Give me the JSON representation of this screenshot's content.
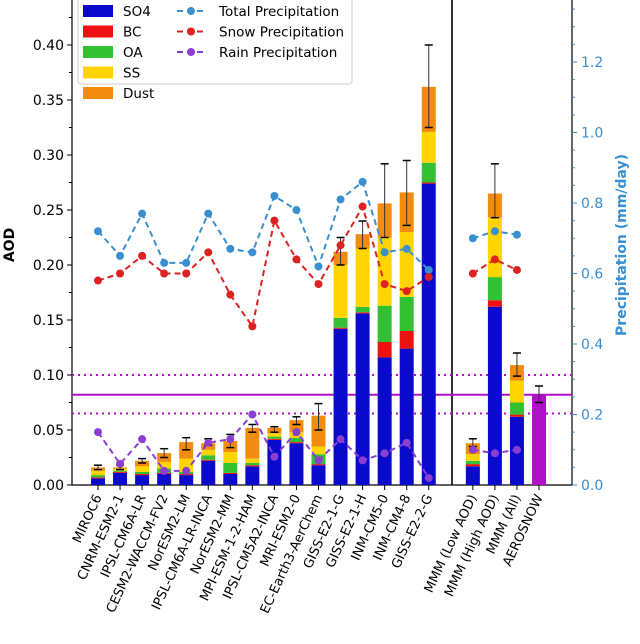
{
  "chart_data": {
    "type": "bar",
    "stacked": true,
    "ylabel": "AOD",
    "y2label": "Precipitation (mm/day)",
    "ylim": [
      0,
      0.44
    ],
    "y2lim": [
      0,
      1.375
    ],
    "yticks": [
      "0.00",
      "0.05",
      "0.10",
      "0.15",
      "0.20",
      "0.25",
      "0.30",
      "0.35",
      "0.40"
    ],
    "y2ticks": [
      "0.0",
      "0.2",
      "0.4",
      "0.6",
      "0.8",
      "1.0",
      "1.2"
    ],
    "categories": [
      "MIROC6",
      "CNRM-ESM2-1",
      "IPSL-CM6A-LR",
      "CESM2-WACCM-FV2",
      "NorESM2-LM",
      "IPSL-CM6A-LR-INCA",
      "NorESM2-MM",
      "MPI-ESM-1-2-HAM",
      "IPSL-CM5A2-INCA",
      "MRI-ESM2-0",
      "EC-Earth3-AerChem",
      "GISS-E2-1-G",
      "GISS-E2-1-H",
      "INM-CM5-0",
      "INM-CM4-8",
      "GISS-E2-2-G",
      "",
      "MMM (Low AOD)",
      "MMM (High AOD)",
      "MMM (All)",
      "AEROSNOW"
    ],
    "colors": {
      "SO4": "#0a0acc",
      "BC": "#ee1111",
      "OA": "#33c133",
      "SS": "#ffd400",
      "Dust": "#f28c0f",
      "Total Precipitation": "#3a8fd0",
      "Snow Precipitation": "#dd2222",
      "Rain Precipitation": "#8a3fd0",
      "AEROSNOW": "#b010c8"
    },
    "series": [
      {
        "name": "SO4",
        "values": [
          0.006,
          0.011,
          0.009,
          0.01,
          0.009,
          0.022,
          0.01,
          0.017,
          0.041,
          0.038,
          0.018,
          0.142,
          0.156,
          0.116,
          0.124,
          0.274,
          null,
          0.017,
          0.162,
          0.062,
          null
        ]
      },
      {
        "name": "BC",
        "values": [
          0.001,
          0.001,
          0.001,
          0.001,
          0.001,
          0.001,
          0.001,
          0.001,
          0.001,
          0.001,
          0.001,
          0.001,
          0.001,
          0.014,
          0.016,
          0.001,
          null,
          0.002,
          0.006,
          0.002,
          null
        ]
      },
      {
        "name": "OA",
        "values": [
          0.002,
          0.001,
          0.002,
          0.004,
          0.002,
          0.004,
          0.009,
          0.002,
          0.002,
          0.004,
          0.009,
          0.009,
          0.005,
          0.033,
          0.031,
          0.018,
          null,
          0.003,
          0.021,
          0.011,
          null
        ]
      },
      {
        "name": "SS",
        "values": [
          0.004,
          0.002,
          0.005,
          0.006,
          0.012,
          0.005,
          0.01,
          0.004,
          0.003,
          0.005,
          0.007,
          0.048,
          0.053,
          0.062,
          0.059,
          0.028,
          null,
          0.006,
          0.054,
          0.02,
          null
        ]
      },
      {
        "name": "Dust",
        "values": [
          0.003,
          0.001,
          0.005,
          0.008,
          0.015,
          0.006,
          0.01,
          0.028,
          0.005,
          0.011,
          0.028,
          0.012,
          0.013,
          0.031,
          0.036,
          0.041,
          null,
          0.01,
          0.022,
          0.014,
          null
        ]
      },
      {
        "name": "AEROSNOW",
        "values": [
          null,
          null,
          null,
          null,
          null,
          null,
          null,
          null,
          null,
          null,
          null,
          null,
          null,
          null,
          null,
          null,
          null,
          null,
          null,
          null,
          0.082
        ]
      }
    ],
    "error_upper": [
      0.018,
      0.018,
      0.024,
      0.033,
      0.043,
      0.042,
      0.046,
      0.055,
      0.053,
      0.062,
      0.074,
      0.225,
      0.24,
      0.292,
      0.295,
      0.4,
      null,
      0.042,
      0.292,
      0.12,
      0.09
    ],
    "error_lower": [
      0.014,
      0.014,
      0.02,
      0.025,
      0.032,
      0.036,
      0.034,
      0.048,
      0.048,
      0.055,
      0.05,
      0.2,
      0.215,
      0.225,
      0.236,
      0.325,
      null,
      0.035,
      0.243,
      0.099,
      0.075
    ],
    "lines": [
      {
        "name": "Total Precipitation",
        "axis": "right",
        "values": [
          0.72,
          0.65,
          0.77,
          0.63,
          0.63,
          0.77,
          0.67,
          0.66,
          0.82,
          0.78,
          0.62,
          0.81,
          0.86,
          0.66,
          0.67,
          0.61,
          null,
          0.7,
          0.72,
          0.71,
          null
        ]
      },
      {
        "name": "Snow Precipitation",
        "axis": "right",
        "values": [
          0.58,
          0.6,
          0.65,
          0.6,
          0.6,
          0.66,
          0.54,
          0.45,
          0.75,
          0.64,
          0.57,
          0.68,
          0.79,
          0.57,
          0.55,
          0.59,
          null,
          0.6,
          0.64,
          0.61,
          null
        ]
      },
      {
        "name": "Rain Precipitation",
        "axis": "right",
        "values": [
          0.15,
          0.06,
          0.13,
          0.04,
          0.04,
          0.12,
          0.13,
          0.2,
          0.08,
          0.15,
          0.07,
          0.13,
          0.07,
          0.09,
          0.12,
          0.02,
          null,
          0.1,
          0.09,
          0.1,
          null
        ]
      }
    ],
    "reference_lines": {
      "AEROSNOW_mean": 0.082,
      "AEROSNOW_upper": 0.1,
      "AEROSNOW_lower": 0.065
    },
    "legend": [
      "SO4",
      "BC",
      "OA",
      "SS",
      "Dust",
      "Total Precipitation",
      "Snow Precipitation",
      "Rain Precipitation"
    ],
    "legend_position": "top-left",
    "grid": false
  }
}
